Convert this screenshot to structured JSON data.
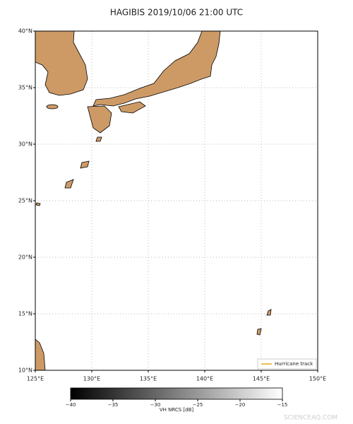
{
  "title": "HAGIBIS 2019/10/06 21:00 UTC",
  "map": {
    "xlim": [
      125,
      150
    ],
    "ylim": [
      10,
      40
    ],
    "xticks": [
      {
        "value": 125,
        "label": "125°E"
      },
      {
        "value": 130,
        "label": "130°E"
      },
      {
        "value": 135,
        "label": "135°E"
      },
      {
        "value": 140,
        "label": "140°E"
      },
      {
        "value": 145,
        "label": "145°E"
      },
      {
        "value": 150,
        "label": "150°E"
      }
    ],
    "yticks": [
      {
        "value": 10,
        "label": "10°N"
      },
      {
        "value": 15,
        "label": "15°N"
      },
      {
        "value": 20,
        "label": "20°N"
      },
      {
        "value": 25,
        "label": "25°N"
      },
      {
        "value": 30,
        "label": "30°N"
      },
      {
        "value": 35,
        "label": "35°N"
      },
      {
        "value": 40,
        "label": "40°N"
      }
    ],
    "grid": true,
    "land_color": "#cd9a66"
  },
  "legend": {
    "label": "Hurricane track",
    "color": "#e6a817"
  },
  "colorbar": {
    "label": "VH NRCS [dB]",
    "lim": [
      -40,
      -15
    ],
    "ticks": [
      {
        "value": -40,
        "label": "−40"
      },
      {
        "value": -35,
        "label": "−35"
      },
      {
        "value": -30,
        "label": "−30"
      },
      {
        "value": -25,
        "label": "−25"
      },
      {
        "value": -20,
        "label": "−20"
      },
      {
        "value": -15,
        "label": "−15"
      }
    ],
    "colormap": [
      "#000000",
      "#ffffff"
    ]
  },
  "watermark": "SCIENCEAQ.COM"
}
